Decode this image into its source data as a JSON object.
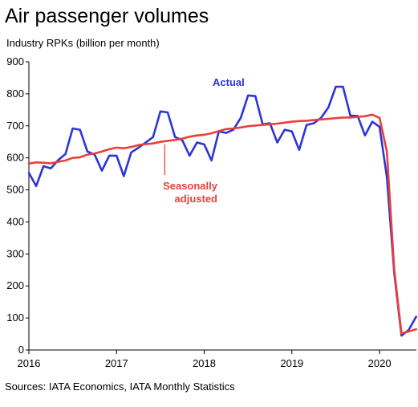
{
  "chart_data": {
    "type": "line",
    "title": "Air passenger volumes",
    "subtitle": "Industry RPKs (billion per month)",
    "ylim": [
      0,
      900
    ],
    "yticks": [
      0,
      100,
      200,
      300,
      400,
      500,
      600,
      700,
      800,
      900
    ],
    "xlim": [
      2016.0,
      2020.42
    ],
    "xticks": [
      2016,
      2017,
      2018,
      2019,
      2020
    ],
    "xtick_labels": [
      "2016",
      "2017",
      "2018",
      "2019",
      "2020"
    ],
    "grid": false,
    "source": "Sources: IATA Economics, IATA Monthly Statistics",
    "series": [
      {
        "name": "Actual",
        "color": "#2b35d8",
        "x": [
          2016.0,
          2016.083,
          2016.167,
          2016.25,
          2016.333,
          2016.417,
          2016.5,
          2016.583,
          2016.667,
          2016.75,
          2016.833,
          2016.917,
          2017.0,
          2017.083,
          2017.167,
          2017.25,
          2017.333,
          2017.417,
          2017.5,
          2017.583,
          2017.667,
          2017.75,
          2017.833,
          2017.917,
          2018.0,
          2018.083,
          2018.167,
          2018.25,
          2018.333,
          2018.417,
          2018.5,
          2018.583,
          2018.667,
          2018.75,
          2018.833,
          2018.917,
          2019.0,
          2019.083,
          2019.167,
          2019.25,
          2019.333,
          2019.417,
          2019.5,
          2019.583,
          2019.667,
          2019.75,
          2019.833,
          2019.917,
          2020.0,
          2020.083,
          2020.167,
          2020.25,
          2020.333,
          2020.417
        ],
        "values": [
          553,
          512,
          574,
          567,
          593,
          612,
          692,
          688,
          620,
          610,
          560,
          607,
          607,
          543,
          617,
          632,
          648,
          665,
          745,
          742,
          665,
          655,
          607,
          648,
          642,
          592,
          683,
          678,
          688,
          725,
          795,
          793,
          705,
          708,
          648,
          688,
          683,
          625,
          703,
          708,
          725,
          758,
          822,
          822,
          732,
          731,
          670,
          713,
          697,
          540,
          240,
          45,
          63,
          104
        ]
      },
      {
        "name": "Seasonally adjusted",
        "color": "#e8403a",
        "x": [
          2016.0,
          2016.083,
          2016.167,
          2016.25,
          2016.333,
          2016.417,
          2016.5,
          2016.583,
          2016.667,
          2016.75,
          2016.833,
          2016.917,
          2017.0,
          2017.083,
          2017.167,
          2017.25,
          2017.333,
          2017.417,
          2017.5,
          2017.583,
          2017.667,
          2017.75,
          2017.833,
          2017.917,
          2018.0,
          2018.083,
          2018.167,
          2018.25,
          2018.333,
          2018.417,
          2018.5,
          2018.583,
          2018.667,
          2018.75,
          2018.833,
          2018.917,
          2019.0,
          2019.083,
          2019.167,
          2019.25,
          2019.333,
          2019.417,
          2019.5,
          2019.583,
          2019.667,
          2019.75,
          2019.833,
          2019.917,
          2020.0,
          2020.083,
          2020.167,
          2020.25,
          2020.333,
          2020.417
        ],
        "values": [
          582,
          586,
          585,
          583,
          588,
          592,
          600,
          602,
          610,
          614,
          620,
          627,
          632,
          630,
          634,
          640,
          643,
          645,
          650,
          653,
          656,
          660,
          666,
          670,
          672,
          677,
          684,
          690,
          692,
          695,
          699,
          701,
          703,
          705,
          707,
          710,
          713,
          715,
          716,
          718,
          720,
          722,
          724,
          726,
          726,
          728,
          730,
          735,
          725,
          620,
          250,
          52,
          58,
          65
        ]
      }
    ],
    "annotations": [
      {
        "text": "Actual",
        "series": "Actual",
        "color": "#2b35d8"
      },
      {
        "text": "Seasonally",
        "text2": "adjusted",
        "series": "Seasonally adjusted",
        "color": "#e8403a",
        "pointer_x": 2017.55,
        "pointer_y": 652
      }
    ]
  }
}
